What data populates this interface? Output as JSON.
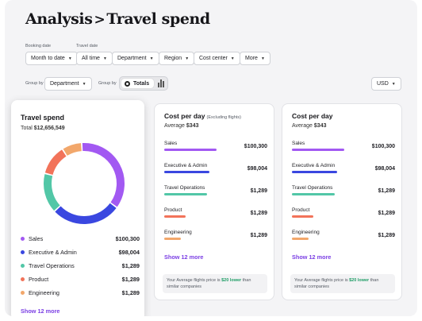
{
  "header": {
    "title_prefix": "Analysis",
    "separator": ">",
    "title": "Travel spend"
  },
  "filters": {
    "booking_date_label": "Booking date",
    "travel_date_label": "Travel date",
    "chips": [
      "Month to date",
      "All time",
      "Department",
      "Region",
      "Cost center",
      "More"
    ]
  },
  "group_by": {
    "label_1": "Group by",
    "dropdown": "Department",
    "label_2": "Group by",
    "toggle_active": "Totals",
    "toggle_other_icon": "bar-chart-icon"
  },
  "currency": "USD",
  "colors": {
    "sales": "#a259f2",
    "executive": "#3a47e0",
    "travel_ops": "#52c7a7",
    "product": "#f2735a",
    "engineering": "#f2a76b",
    "link": "#7b3fe4",
    "positive": "#1f9d66"
  },
  "travel_spend_card": {
    "title": "Travel spend",
    "total_label": "Total",
    "total_value": "$12,656,549",
    "items": [
      {
        "name": "Sales",
        "value": "$100,300"
      },
      {
        "name": "Executive & Admin",
        "value": "$98,004"
      },
      {
        "name": "Travel Operations",
        "value": "$1,289"
      },
      {
        "name": "Product",
        "value": "$1,289"
      },
      {
        "name": "Engineering",
        "value": "$1,289"
      }
    ],
    "show_more": "Show 12 more"
  },
  "chart_data": {
    "type": "pie",
    "series": [
      {
        "name": "Sales",
        "share": 0.36
      },
      {
        "name": "Executive & Admin",
        "share": 0.28
      },
      {
        "name": "Travel Operations",
        "share": 0.16
      },
      {
        "name": "Product",
        "share": 0.12
      },
      {
        "name": "Engineering",
        "share": 0.08
      }
    ]
  },
  "cost_card_1": {
    "title": "Cost per day",
    "note": "(Excluding flights)",
    "avg_label": "Average",
    "avg_value": "$343",
    "rows": [
      {
        "name": "Sales",
        "value": "$100,300",
        "fill": 0.56
      },
      {
        "name": "Executive & Admin",
        "value": "$98,004",
        "fill": 0.48
      },
      {
        "name": "Travel Operations",
        "value": "$1,289",
        "fill": 0.46
      },
      {
        "name": "Product",
        "value": "$1,289",
        "fill": 0.23
      },
      {
        "name": "Engineering",
        "value": "$1,289",
        "fill": 0.18
      }
    ],
    "show_more": "Show 12 more",
    "footnote_pre": "Your Average flights price is",
    "footnote_highlight": "$20 lower",
    "footnote_post": "than similar companies"
  },
  "cost_card_2": {
    "title": "Cost per day",
    "avg_label": "Average",
    "avg_value": "$343",
    "rows": [
      {
        "name": "Sales",
        "value": "$100,300",
        "fill": 0.56
      },
      {
        "name": "Executive & Admin",
        "value": "$98,004",
        "fill": 0.48
      },
      {
        "name": "Travel Operations",
        "value": "$1,289",
        "fill": 0.46
      },
      {
        "name": "Product",
        "value": "$1,289",
        "fill": 0.23
      },
      {
        "name": "Engineering",
        "value": "$1,289",
        "fill": 0.18
      }
    ],
    "show_more": "Show 12 more",
    "footnote_pre": "Your Average flights price is",
    "footnote_highlight": "$20 lower",
    "footnote_post": "than similar companies"
  }
}
